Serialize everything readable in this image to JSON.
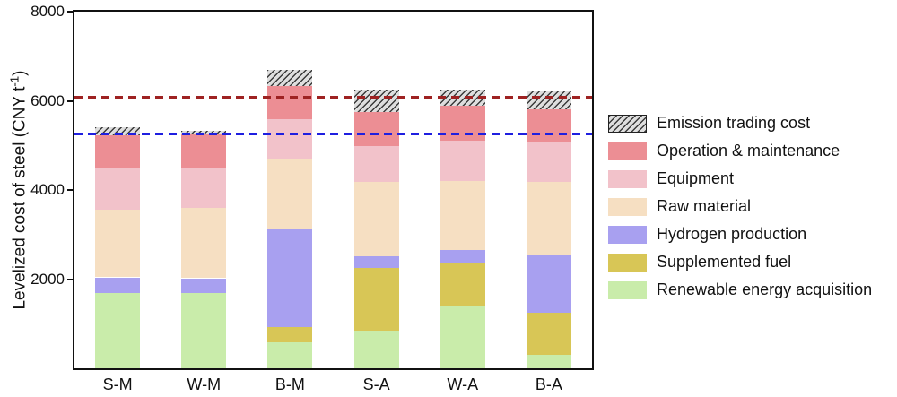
{
  "figure": {
    "y_axis_label": {
      "pre": "Levelized cost of steel (CNY t",
      "sup": "-1",
      "post": ")"
    }
  },
  "chart_data": {
    "type": "bar",
    "subtype": "stacked",
    "title": "",
    "xlabel": "",
    "ylabel": "Levelized cost of steel (CNY t^-1)",
    "categories": [
      "S-M",
      "W-M",
      "B-M",
      "S-A",
      "W-A",
      "B-A"
    ],
    "series": [
      {
        "name": "Renewable energy acquisition",
        "color": "#c9ecaa",
        "values": [
          1680,
          1680,
          580,
          840,
          1380,
          300
        ]
      },
      {
        "name": "Supplemented fuel",
        "color": "#d8c656",
        "values": [
          0,
          0,
          340,
          1420,
          1000,
          940
        ]
      },
      {
        "name": "Hydrogen production",
        "color": "#a8a0f0",
        "values": [
          360,
          340,
          2220,
          260,
          280,
          1320
        ]
      },
      {
        "name": "Raw material",
        "color": "#f6dfc2",
        "values": [
          1520,
          1580,
          1560,
          1660,
          1540,
          1620
        ]
      },
      {
        "name": "Equipment",
        "color": "#f2c2ca",
        "values": [
          920,
          880,
          880,
          800,
          900,
          900
        ]
      },
      {
        "name": "Operation & maintenance",
        "color": "#ec8e94",
        "values": [
          740,
          760,
          760,
          760,
          780,
          720
        ]
      },
      {
        "name": "Emission trading cost",
        "color": "#dedede",
        "pattern": "diagonal-hatch",
        "stripe_color": "#3a3a3a",
        "values": [
          180,
          80,
          360,
          520,
          380,
          440
        ]
      }
    ],
    "totals": [
      5400,
      5320,
      6700,
      6260,
      6260,
      6240
    ],
    "ylim": [
      0,
      8000
    ],
    "yticks": [
      2000,
      4000,
      6000,
      8000
    ],
    "grid": false,
    "legend_position": "right-outside",
    "legend_order_top_to_bottom": [
      "Emission trading cost",
      "Operation & maintenance",
      "Equipment",
      "Raw material",
      "Hydrogen production",
      "Supplemented fuel",
      "Renewable energy acquisition"
    ],
    "reference_lines": [
      {
        "value": 6100,
        "color": "#9e2222",
        "style": "dashed"
      },
      {
        "value": 5270,
        "color": "#1f1fe0",
        "style": "dashed"
      }
    ]
  }
}
